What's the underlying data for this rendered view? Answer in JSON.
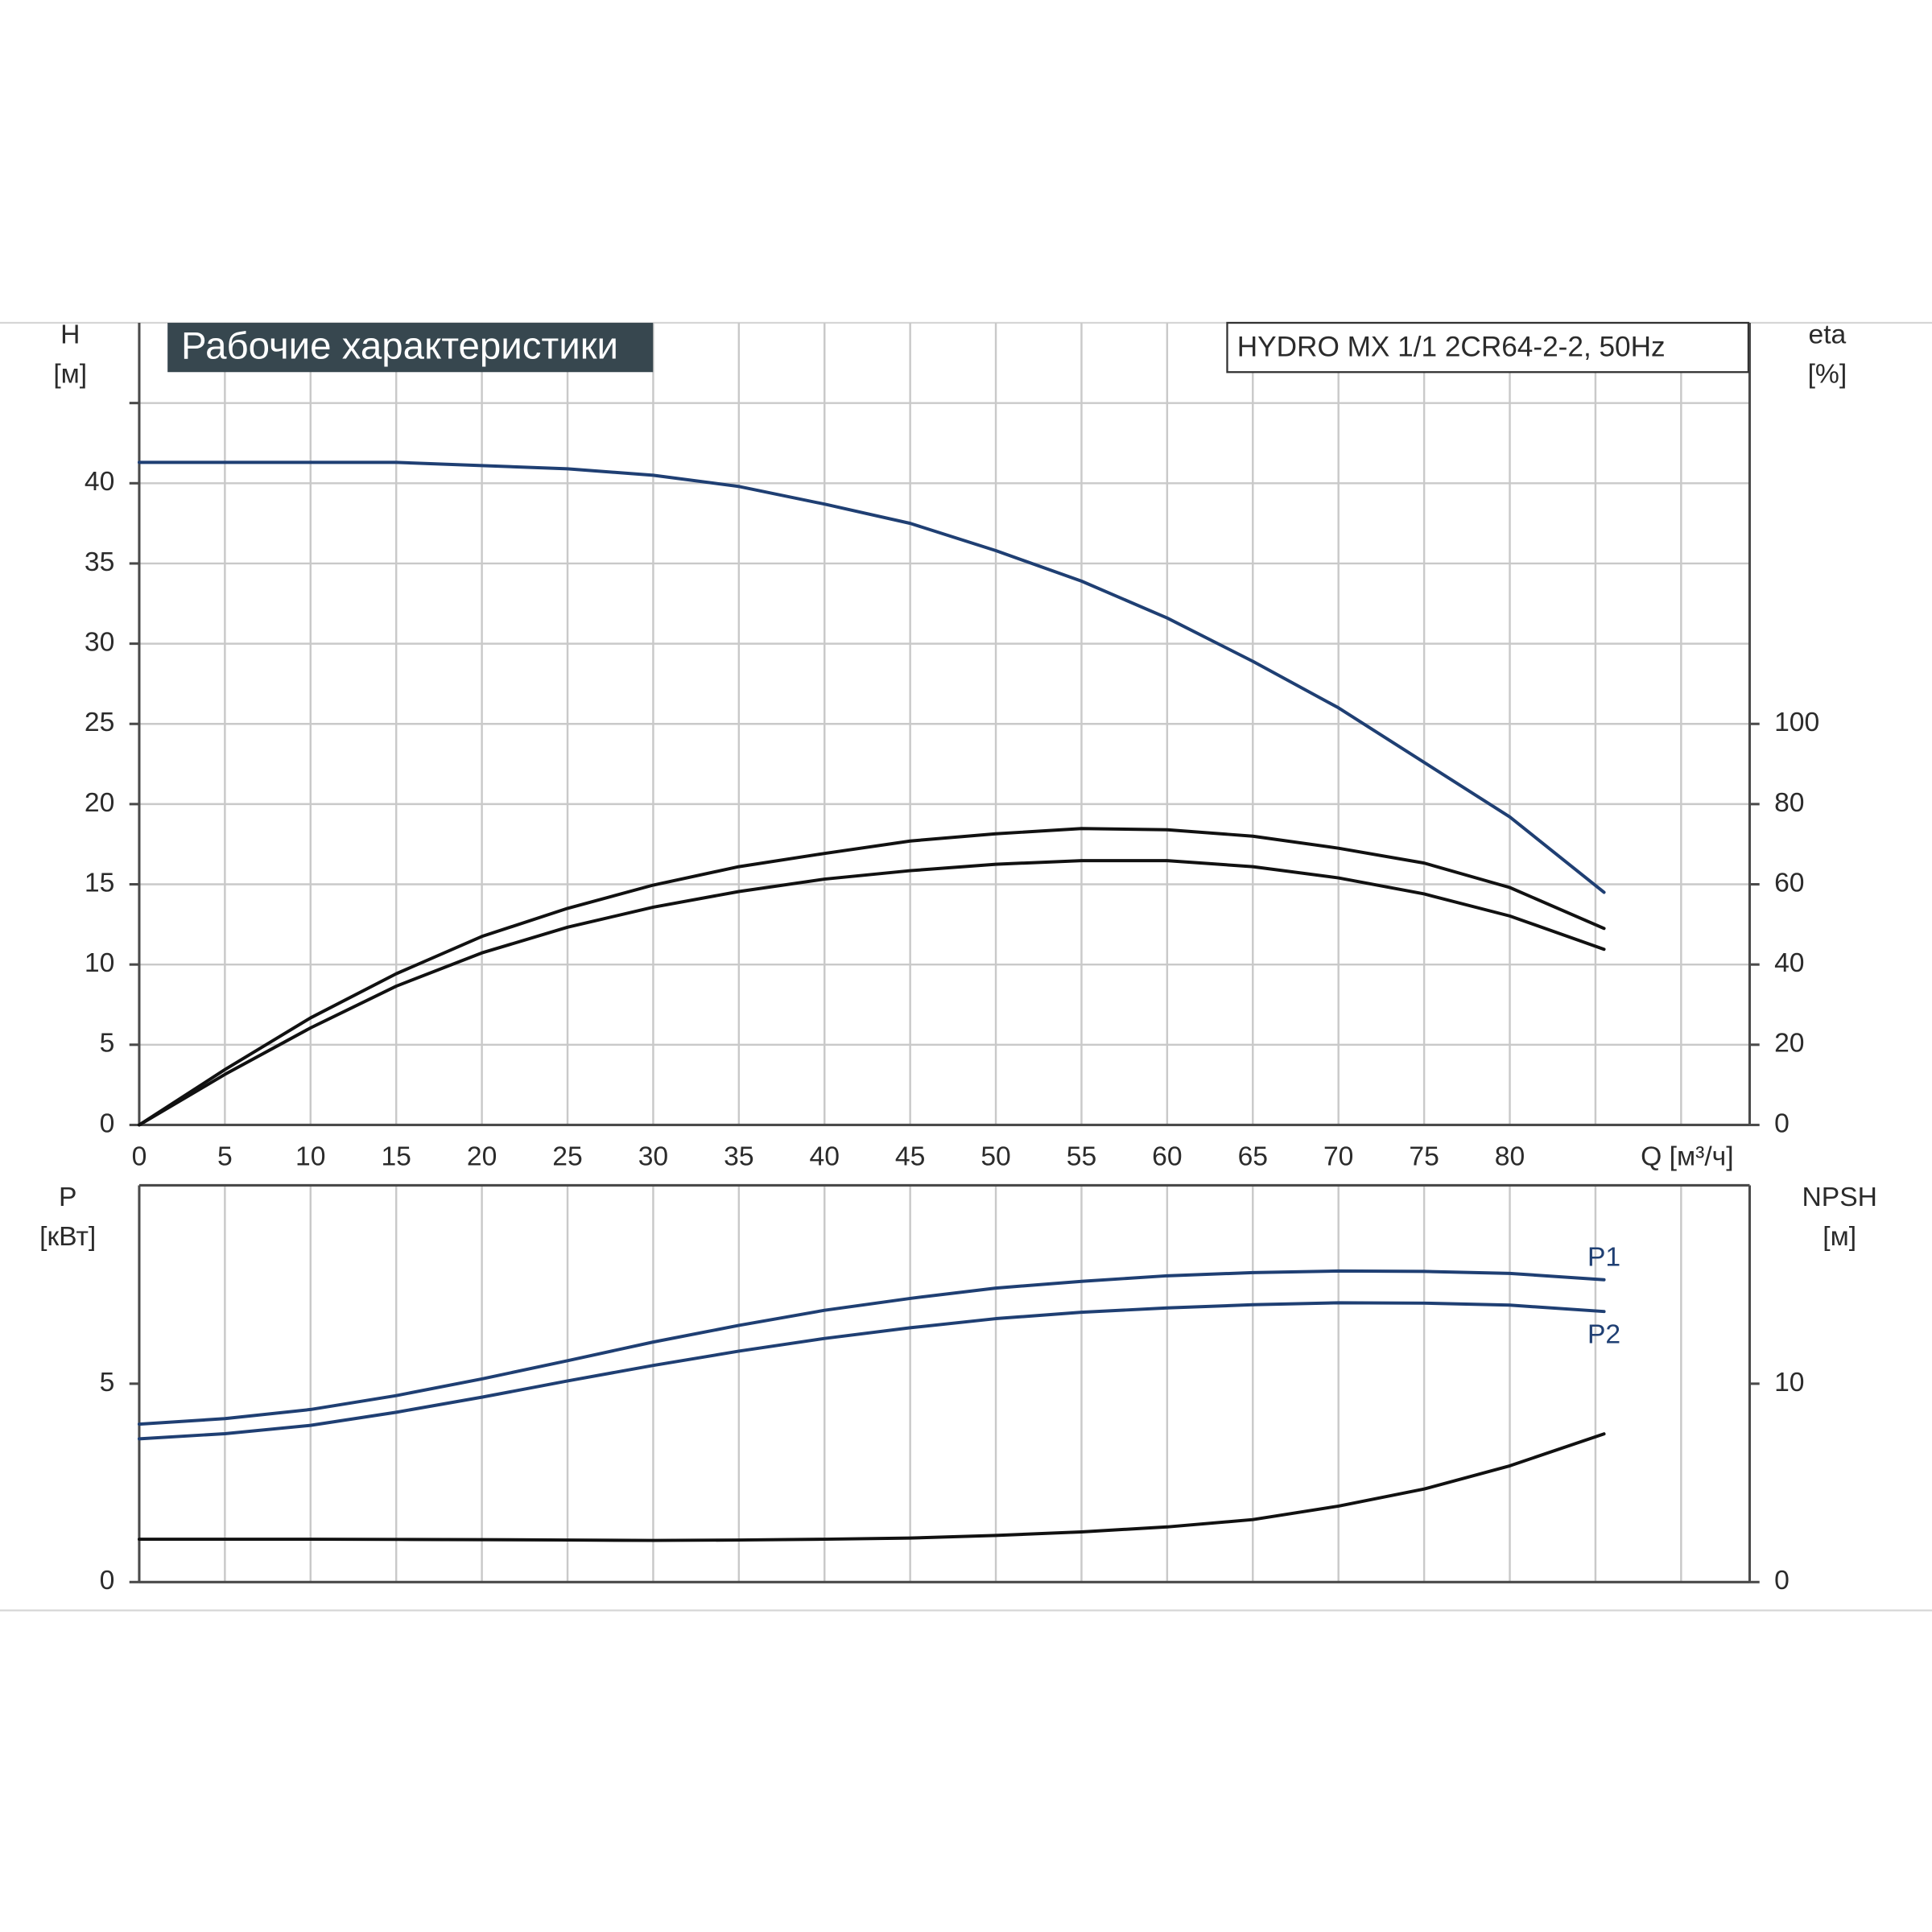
{
  "chart_data": [
    {
      "type": "line",
      "title": "Рабочие характеристики",
      "subtitle": "HYDRO MX 1/1 2CR64-2-2, 50Hz",
      "ylabel": "H",
      "yunit": "[м]",
      "y2label": "eta",
      "y2unit": "[%]",
      "xlabel": "Q [м³/ч]",
      "xlim": [
        0,
        94
      ],
      "xticks": [
        0,
        5,
        10,
        15,
        20,
        25,
        30,
        35,
        40,
        45,
        50,
        55,
        60,
        65,
        70,
        75,
        80,
        {
          "value": 85,
          "label": null
        },
        {
          "value": 90,
          "label": null
        }
      ],
      "ylim": [
        0,
        50
      ],
      "yticks": [
        0,
        5,
        10,
        15,
        20,
        25,
        30,
        35,
        40,
        {
          "value": 45,
          "label": null
        }
      ],
      "y2lim": [
        0,
        200
      ],
      "y2ticks": [
        0,
        20,
        40,
        60,
        80,
        100
      ],
      "grid": "both",
      "x": [
        0,
        5,
        10,
        15,
        20,
        25,
        30,
        35,
        40,
        45,
        50,
        55,
        60,
        65,
        70,
        75,
        80,
        85.5
      ],
      "series": [
        {
          "color": "#1f3f73",
          "values": [
            41.3,
            41.3,
            41.3,
            41.3,
            41.1,
            40.9,
            40.5,
            39.8,
            38.7,
            37.5,
            35.8,
            33.9,
            31.6,
            28.9,
            26.0,
            22.6,
            19.2,
            14.5
          ]
        },
        {
          "color": "#111111",
          "axis": "y2",
          "values": [
            0,
            13.8,
            26.7,
            37.7,
            47.0,
            54.0,
            59.8,
            64.4,
            67.7,
            70.8,
            72.6,
            73.9,
            73.6,
            72.0,
            69.0,
            65.3,
            59.2,
            49.0
          ]
        },
        {
          "color": "#111111",
          "axis": "y2",
          "values": [
            0,
            12.6,
            24.2,
            34.6,
            42.9,
            49.3,
            54.3,
            58.2,
            61.3,
            63.4,
            65.0,
            65.9,
            65.9,
            64.4,
            61.6,
            57.6,
            52.1,
            43.8
          ]
        }
      ]
    },
    {
      "type": "line",
      "ylabel": "P",
      "yunit": "[кВт]",
      "y2label": "NPSH",
      "y2unit": "[м]",
      "xlim": [
        0,
        94
      ],
      "xticks": [
        0,
        5,
        10,
        15,
        20,
        25,
        30,
        35,
        40,
        45,
        50,
        55,
        60,
        65,
        70,
        75,
        80,
        85,
        90
      ],
      "show_xtick_labels": false,
      "ylim": [
        0,
        10
      ],
      "yticks": [
        0,
        5
      ],
      "y2lim": [
        0,
        20
      ],
      "y2ticks": [
        0,
        10
      ],
      "grid": "x",
      "x": [
        0,
        5,
        10,
        15,
        20,
        25,
        30,
        35,
        40,
        45,
        50,
        55,
        60,
        65,
        70,
        75,
        80,
        85.5
      ],
      "series": [
        {
          "name": "P1",
          "color": "#1f3f73",
          "values": [
            3.98,
            4.12,
            4.35,
            4.7,
            5.12,
            5.58,
            6.05,
            6.47,
            6.85,
            7.15,
            7.41,
            7.58,
            7.72,
            7.8,
            7.84,
            7.83,
            7.78,
            7.62
          ]
        },
        {
          "name": "P2",
          "color": "#1f3f73",
          "values": [
            3.61,
            3.74,
            3.95,
            4.28,
            4.66,
            5.07,
            5.46,
            5.82,
            6.14,
            6.41,
            6.64,
            6.8,
            6.91,
            6.99,
            7.04,
            7.03,
            6.98,
            6.82
          ]
        },
        {
          "color": "#111111",
          "axis": "y2",
          "values": [
            2.16,
            2.16,
            2.16,
            2.15,
            2.14,
            2.12,
            2.1,
            2.12,
            2.16,
            2.22,
            2.35,
            2.53,
            2.78,
            3.15,
            3.83,
            4.69,
            5.86,
            7.47
          ]
        }
      ]
    }
  ]
}
